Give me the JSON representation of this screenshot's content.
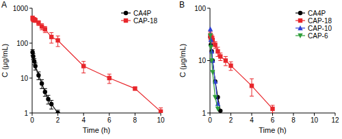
{
  "chart_data": [
    {
      "type": "line",
      "title": "A",
      "x_label": "Time (h)",
      "y_label": "C (μg/mL)",
      "log": "y",
      "legend": "upper right",
      "xlim": [
        0,
        10
      ],
      "xticks": [
        0,
        2,
        4,
        6,
        8,
        10
      ],
      "ylim": [
        1,
        1000
      ],
      "yticks": [
        1,
        10,
        100,
        1000
      ],
      "series": [
        {
          "name": "CA4P",
          "color": "#000000",
          "marker": "circle",
          "x": [
            0.033,
            0.083,
            0.167,
            0.25,
            0.5,
            0.75,
            1,
            1.25,
            1.5,
            2
          ],
          "values": [
            55,
            42,
            30,
            22,
            12,
            7,
            4,
            2.5,
            1.8,
            1.0
          ],
          "errors": [
            10,
            8,
            6,
            5,
            3,
            2,
            1,
            0.7,
            0.5,
            0.2
          ]
        },
        {
          "name": "CAP-18",
          "color": "#e8262b",
          "marker": "square",
          "x": [
            0.033,
            0.083,
            0.167,
            0.25,
            0.5,
            0.75,
            1,
            1.5,
            2,
            4,
            6,
            8,
            10
          ],
          "values": [
            520,
            480,
            470,
            450,
            380,
            300,
            250,
            150,
            120,
            22,
            10,
            5,
            1.1
          ],
          "errors": [
            80,
            70,
            70,
            60,
            60,
            60,
            50,
            50,
            40,
            8,
            3,
            0.5,
            0.3
          ]
        }
      ]
    },
    {
      "type": "line",
      "title": "B",
      "x_label": "Time (h)",
      "y_label": "C (μg/mL)",
      "log": "y",
      "legend": "upper right",
      "xlim": [
        0,
        12
      ],
      "xticks": [
        0,
        2,
        4,
        6,
        8,
        10,
        12
      ],
      "ylim": [
        1,
        100
      ],
      "yticks": [
        1,
        10,
        100
      ],
      "series": [
        {
          "name": "CA4P",
          "color": "#000000",
          "marker": "circle",
          "x": [
            0.033,
            0.083,
            0.167,
            0.25,
            0.5,
            0.75,
            1
          ],
          "values": [
            28,
            20,
            15,
            10,
            4,
            2,
            1.1
          ]
        },
        {
          "name": "CAP-18",
          "color": "#e8262b",
          "marker": "square",
          "x": [
            0.033,
            0.083,
            0.167,
            0.25,
            0.5,
            0.75,
            1,
            1.5,
            2,
            4,
            6
          ],
          "values": [
            30,
            28,
            27,
            25,
            20,
            15,
            12,
            10,
            8,
            3.3,
            1.2
          ],
          "errors": [
            5,
            5,
            4,
            4,
            3,
            3,
            2,
            2,
            1.5,
            1.2,
            0.2
          ]
        },
        {
          "name": "CAP-10",
          "color": "#2f3fd6",
          "marker": "triangle",
          "x": [
            0.033,
            0.083,
            0.167,
            0.25,
            0.5,
            0.75
          ],
          "values": [
            40,
            25,
            15,
            10,
            4,
            1.5
          ]
        },
        {
          "name": "CAP-6",
          "color": "#2e9e3a",
          "marker": "triangle-down",
          "x": [
            0.033,
            0.083,
            0.167,
            0.25,
            0.5,
            0.75
          ],
          "values": [
            30,
            18,
            10,
            6,
            2,
            1.2
          ]
        }
      ]
    }
  ]
}
